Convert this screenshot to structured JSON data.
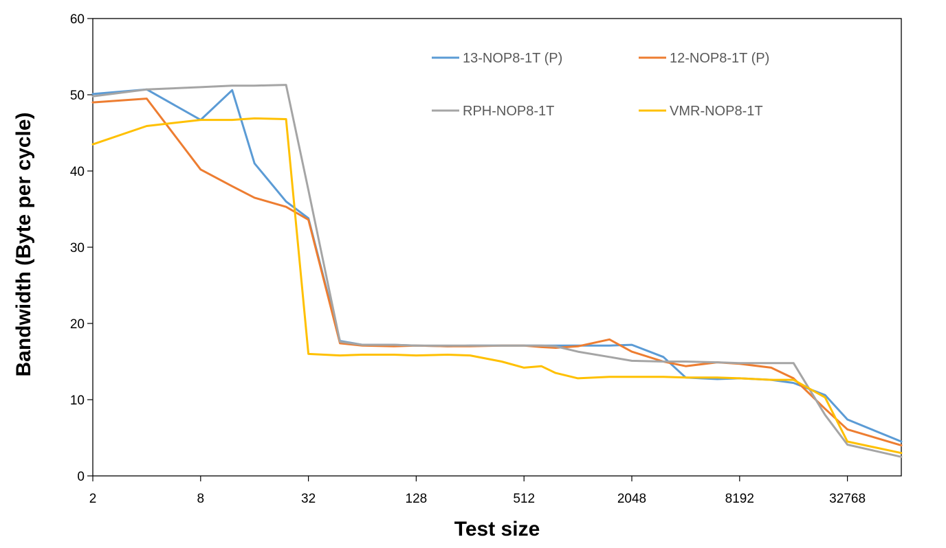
{
  "chart_data": {
    "type": "line",
    "title": "",
    "xlabel": "Test size",
    "ylabel": "Bandwidth (Byte per cycle)",
    "x_scale": "log2",
    "x": [
      2,
      4,
      8,
      12,
      16,
      24,
      32,
      48,
      64,
      96,
      128,
      192,
      256,
      384,
      512,
      640,
      768,
      1024,
      1536,
      2048,
      3072,
      4096,
      6144,
      8192,
      12288,
      16384,
      24576,
      32768,
      65536
    ],
    "xticks": [
      2,
      8,
      32,
      128,
      512,
      2048,
      8192,
      32768
    ],
    "xlim": [
      2,
      65536
    ],
    "ylim": [
      0,
      60
    ],
    "yticks": [
      0,
      10,
      20,
      30,
      40,
      50,
      60
    ],
    "grid": false,
    "legend": "top-right",
    "series": [
      {
        "name": "13-NOP8-1T (P)",
        "color": "#5B9BD5",
        "values": [
          50.1,
          50.7,
          46.7,
          50.6,
          41.0,
          36.0,
          33.8,
          17.7,
          17.2,
          17.2,
          17.1,
          17.0,
          17.1,
          17.1,
          17.1,
          17.1,
          17.1,
          17.1,
          17.1,
          17.2,
          15.6,
          12.9,
          12.7,
          12.8,
          12.6,
          12.2,
          10.6,
          7.4,
          4.5
        ]
      },
      {
        "name": "12-NOP8-1T (P)",
        "color": "#ED7D31",
        "values": [
          49.0,
          49.5,
          40.2,
          38.0,
          36.5,
          35.3,
          33.6,
          17.4,
          17.1,
          17.0,
          17.1,
          17.0,
          17.0,
          17.1,
          17.1,
          16.9,
          16.8,
          17.0,
          17.9,
          16.3,
          15.0,
          14.4,
          14.9,
          14.7,
          14.2,
          12.8,
          8.8,
          6.1,
          4.0
        ]
      },
      {
        "name": "RPH-NOP8-1T",
        "color": "#A5A5A5",
        "values": [
          49.8,
          50.7,
          51.0,
          51.2,
          51.2,
          51.3,
          37.5,
          17.6,
          17.2,
          17.2,
          17.1,
          17.1,
          17.1,
          17.1,
          17.1,
          17.1,
          17.0,
          16.3,
          15.6,
          15.1,
          15.0,
          15.0,
          14.9,
          14.8,
          14.8,
          14.8,
          8.0,
          4.1,
          2.5
        ]
      },
      {
        "name": "VMR-NOP8-1T",
        "color": "#FFC000",
        "values": [
          43.5,
          45.9,
          46.7,
          46.7,
          46.9,
          46.8,
          16.0,
          15.8,
          15.9,
          15.9,
          15.8,
          15.9,
          15.8,
          15.0,
          14.2,
          14.4,
          13.5,
          12.8,
          13.0,
          13.0,
          13.0,
          12.9,
          12.9,
          12.8,
          12.6,
          12.6,
          10.3,
          4.5,
          3.0
        ]
      }
    ]
  }
}
